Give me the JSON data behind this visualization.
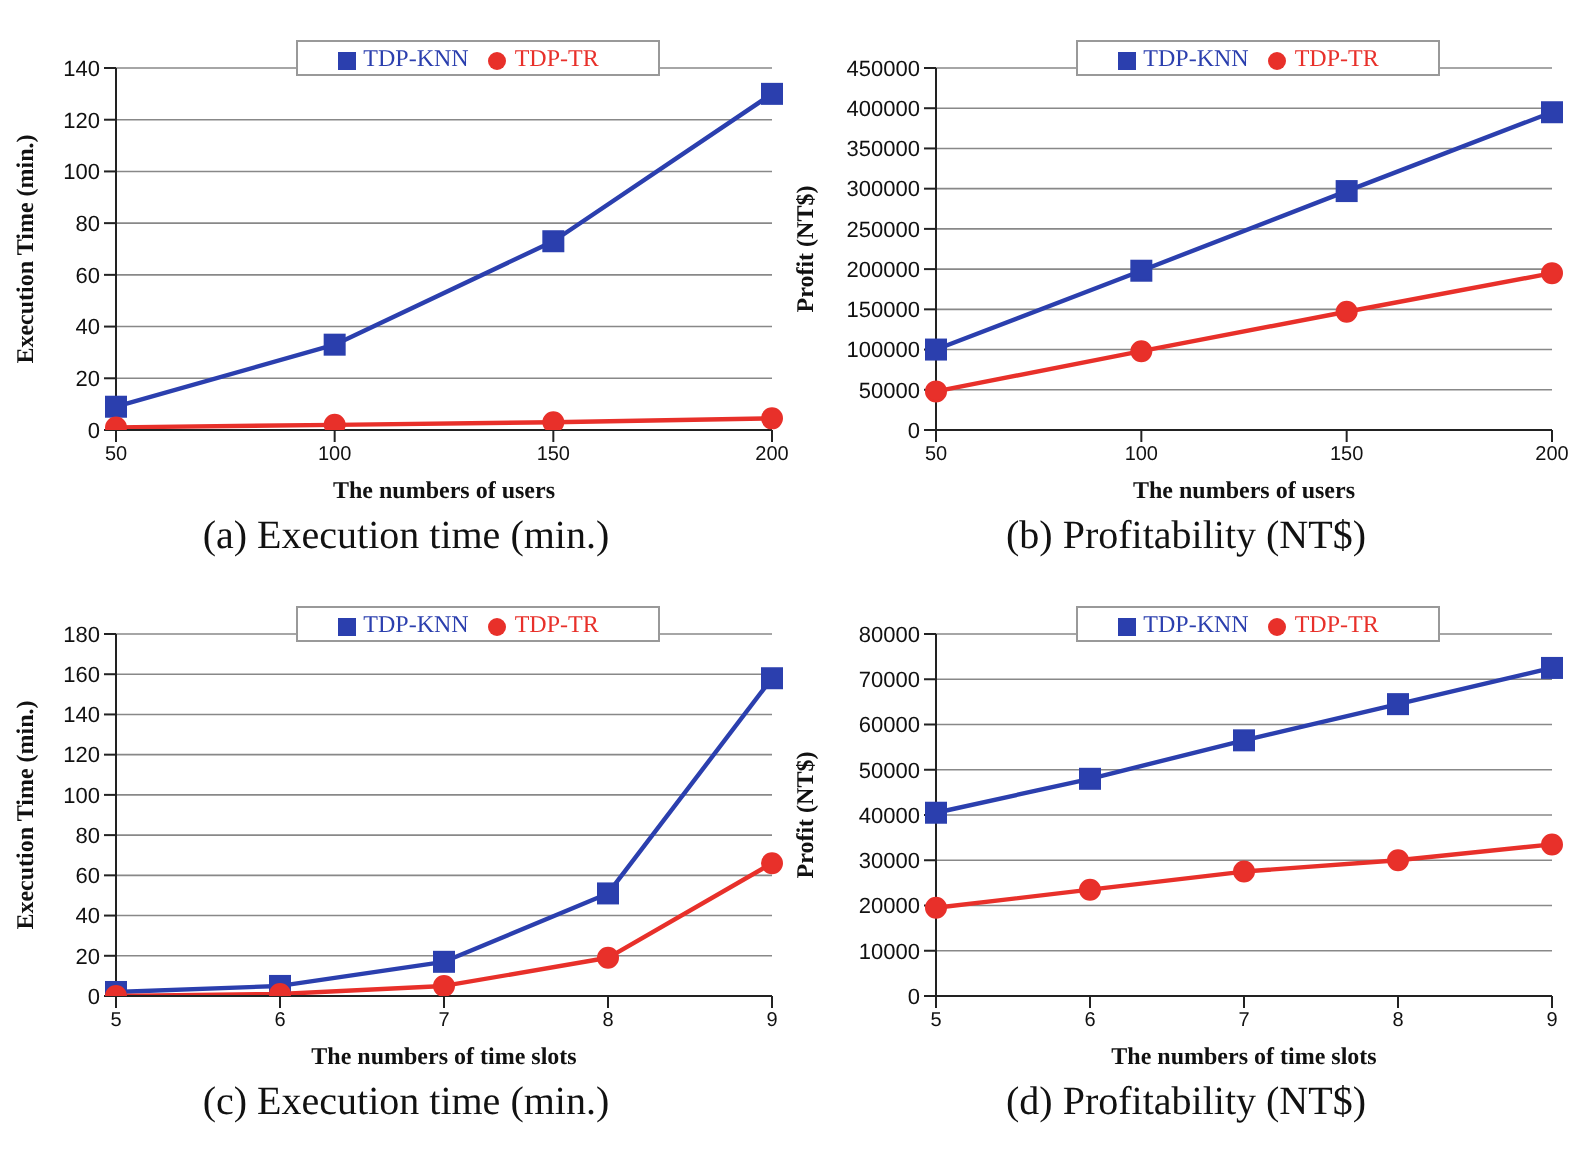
{
  "chart_data": [
    {
      "type": "line",
      "title": "(a) Execution time (min.)",
      "xlabel": "The numbers of users",
      "ylabel": "Execution Time (min.)",
      "categories": [
        "50",
        "100",
        "150",
        "200"
      ],
      "series": [
        {
          "name": "TDP-TR",
          "color": "#e8302a",
          "marker": "circle",
          "values": [
            1,
            2,
            3,
            4.5
          ]
        },
        {
          "name": "TDP-KNN",
          "color": "#2b3fae",
          "marker": "square",
          "values": [
            9,
            33,
            73,
            130
          ]
        }
      ],
      "ylim": [
        0,
        140
      ],
      "yticks": [
        0,
        20,
        40,
        60,
        80,
        100,
        120,
        140
      ],
      "grid": "y",
      "legend": "top"
    },
    {
      "type": "line",
      "title": "(b) Profitability (NT$)",
      "xlabel": "The numbers of users",
      "ylabel": "Profit (NT$)",
      "categories": [
        "50",
        "100",
        "150",
        "200"
      ],
      "series": [
        {
          "name": "TDP-TR",
          "color": "#e8302a",
          "marker": "circle",
          "values": [
            48000,
            98000,
            147000,
            195000
          ]
        },
        {
          "name": "TDP-KNN",
          "color": "#2b3fae",
          "marker": "square",
          "values": [
            100000,
            198000,
            297000,
            395000
          ]
        }
      ],
      "ylim": [
        0,
        450000
      ],
      "yticks": [
        0,
        50000,
        100000,
        150000,
        200000,
        250000,
        300000,
        350000,
        400000,
        450000
      ],
      "grid": "y",
      "legend": "top"
    },
    {
      "type": "line",
      "title": "(c) Execution time (min.)",
      "xlabel": "The numbers of time slots",
      "ylabel": "Execution Time (min.)",
      "categories": [
        "5",
        "6",
        "7",
        "8",
        "9"
      ],
      "series": [
        {
          "name": "TDP-TR",
          "color": "#e8302a",
          "marker": "circle",
          "values": [
            0,
            1,
            5,
            19,
            66
          ]
        },
        {
          "name": "TDP-KNN",
          "color": "#2b3fae",
          "marker": "square",
          "values": [
            2,
            5,
            17,
            51,
            158
          ]
        }
      ],
      "ylim": [
        0,
        180
      ],
      "yticks": [
        0,
        20,
        40,
        60,
        80,
        100,
        120,
        140,
        160,
        180
      ],
      "grid": "y",
      "legend": "top"
    },
    {
      "type": "line",
      "title": "(d) Profitability (NT$)",
      "xlabel": "The numbers of time slots",
      "ylabel": "Profit (NT$)",
      "categories": [
        "5",
        "6",
        "7",
        "8",
        "9"
      ],
      "series": [
        {
          "name": "TDP-TR",
          "color": "#e8302a",
          "marker": "circle",
          "values": [
            19500,
            23500,
            27500,
            30000,
            33500
          ]
        },
        {
          "name": "TDP-KNN",
          "color": "#2b3fae",
          "marker": "square",
          "values": [
            40500,
            48000,
            56500,
            64500,
            72500
          ]
        }
      ],
      "ylim": [
        0,
        80000
      ],
      "yticks": [
        0,
        10000,
        20000,
        30000,
        40000,
        50000,
        60000,
        70000,
        80000
      ],
      "grid": "y",
      "legend": "top"
    }
  ]
}
